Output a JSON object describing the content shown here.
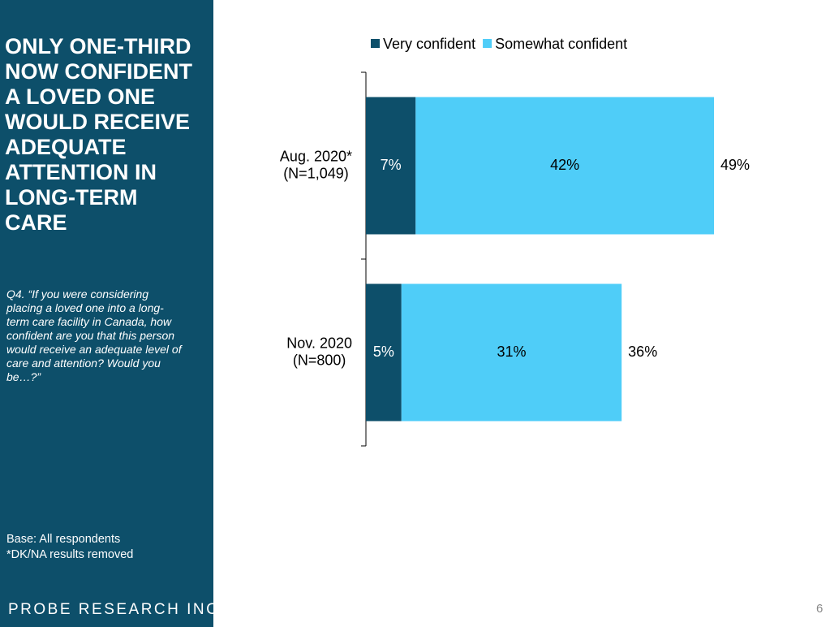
{
  "sidebar": {
    "title": [
      "ONLY ONE-THIRD",
      "NOW CONFIDENT",
      "A LOVED ONE",
      "WOULD RECEIVE",
      "ADEQUATE",
      "ATTENTION IN",
      "LONG-TERM",
      "CARE"
    ],
    "question": [
      "Q4. “If you were considering",
      "placing a loved one into a long-",
      "term care facility in Canada, how",
      "confident are you that this person",
      "would receive an adequate level of",
      "care and attention? Would you",
      "be…?”"
    ],
    "notes": [
      "Base: All respondents",
      "*DK/NA results removed"
    ],
    "logo": "PROBE RESEARCH INC."
  },
  "page_number": 6,
  "chart_data": {
    "type": "stacked_bar",
    "orientation": "horizontal",
    "legend": "top",
    "categories": [
      [
        "Aug. 2020*",
        "(N=1,049)"
      ],
      [
        "Nov. 2020",
        "(N=800)"
      ]
    ],
    "series": [
      {
        "name": "Very confident",
        "color": "#0d4f6a",
        "label_color": "#ffffff",
        "values": [
          7,
          5
        ],
        "value_labels": [
          "7%",
          "5%"
        ]
      },
      {
        "name": "Somewhat confident",
        "color": "#4fcdf8",
        "label_color": "#000000",
        "values": [
          42,
          31
        ],
        "value_labels": [
          "42%",
          "31%"
        ]
      }
    ],
    "totals": [
      49,
      36
    ],
    "total_labels": [
      "49%",
      "36%"
    ]
  }
}
